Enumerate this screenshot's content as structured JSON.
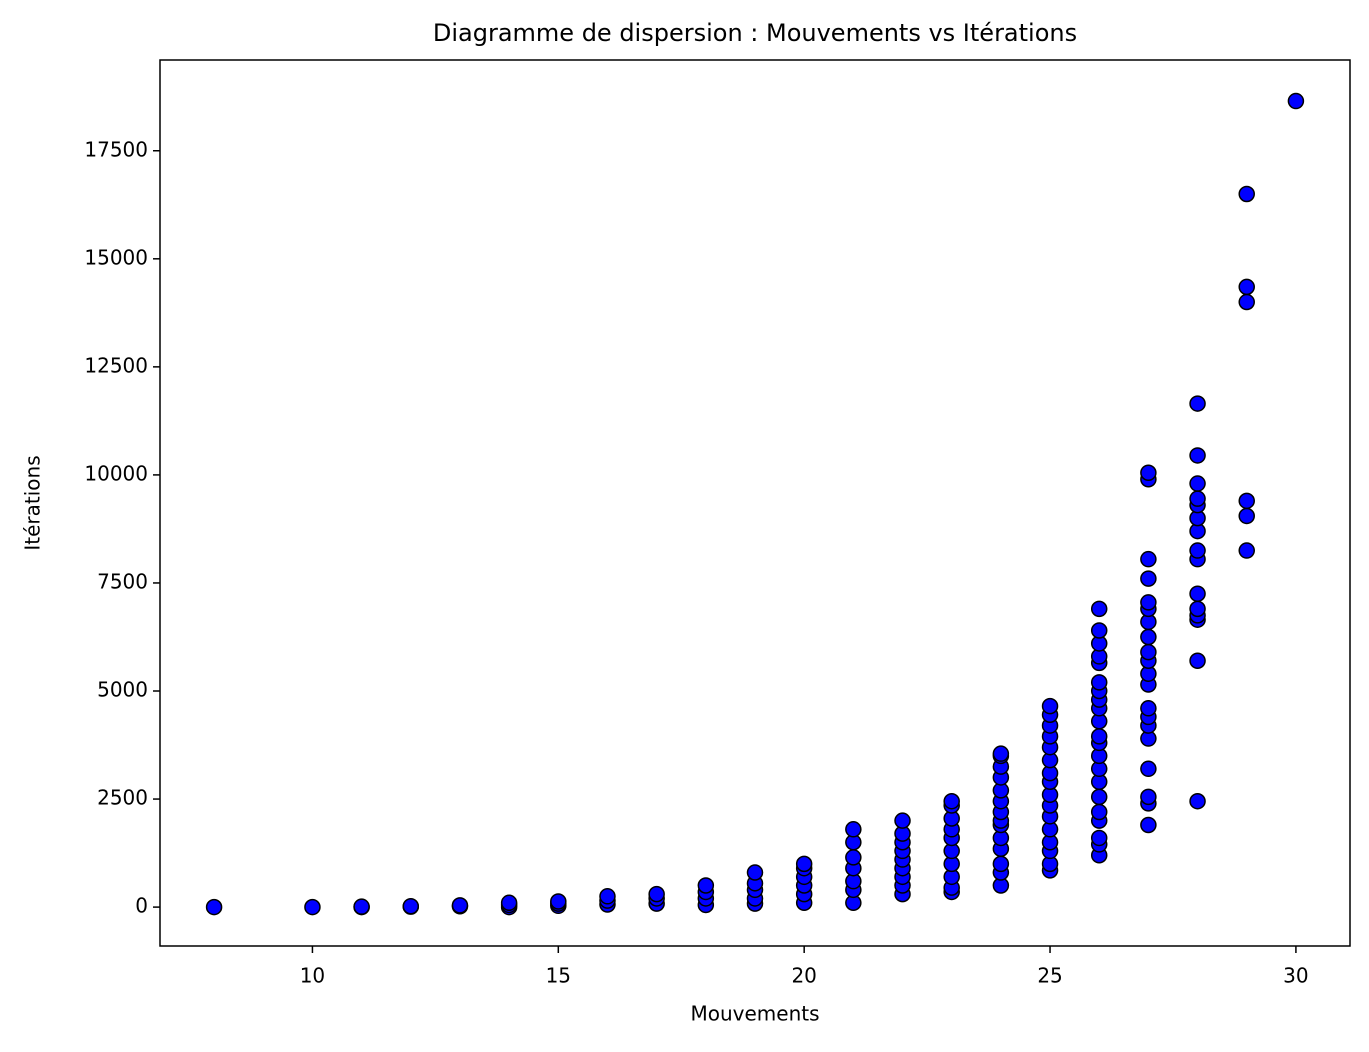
{
  "chart_data": {
    "type": "scatter",
    "title": "Diagramme de dispersion : Mouvements vs Itérations",
    "x_label": "Mouvements",
    "y_label": "Itérations",
    "xlim": [
      6.9,
      31.1
    ],
    "ylim": [
      -900,
      19600
    ],
    "xticks": [
      10,
      15,
      20,
      25,
      30
    ],
    "yticks": [
      0,
      2500,
      5000,
      7500,
      10000,
      12500,
      15000,
      17500
    ],
    "series": [
      {
        "color": "#0000ff",
        "x": [
          8,
          10,
          11,
          11,
          12,
          12,
          13,
          13,
          14,
          14,
          14,
          15,
          15,
          15,
          16,
          16,
          16,
          17,
          17,
          17,
          18,
          18,
          18,
          18,
          19,
          19,
          19,
          19,
          19,
          20,
          20,
          20,
          20,
          20,
          20,
          21,
          21,
          21,
          21,
          21,
          21,
          21,
          22,
          22,
          22,
          22,
          22,
          22,
          22,
          22,
          22,
          23,
          23,
          23,
          23,
          23,
          23,
          23,
          23,
          23,
          23,
          24,
          24,
          24,
          24,
          24,
          24,
          24,
          24,
          24,
          24,
          24,
          24,
          24,
          24,
          25,
          25,
          25,
          25,
          25,
          25,
          25,
          25,
          25,
          25,
          25,
          25,
          25,
          25,
          25,
          25,
          26,
          26,
          26,
          26,
          26,
          26,
          26,
          26,
          26,
          26,
          26,
          26,
          26,
          26,
          26,
          26,
          26,
          26,
          26,
          26,
          26,
          27,
          27,
          27,
          27,
          27,
          27,
          27,
          27,
          27,
          27,
          27,
          27,
          27,
          27,
          27,
          27,
          27,
          27,
          27,
          27,
          28,
          28,
          28,
          28,
          28,
          28,
          28,
          28,
          28,
          28,
          28,
          28,
          28,
          28,
          28,
          29,
          29,
          29,
          29,
          29,
          29,
          30
        ],
        "values": [
          0,
          0,
          0,
          10,
          10,
          20,
          20,
          40,
          0,
          50,
          100,
          30,
          80,
          130,
          60,
          150,
          250,
          80,
          200,
          300,
          50,
          200,
          350,
          500,
          80,
          200,
          400,
          550,
          800,
          100,
          300,
          500,
          700,
          900,
          1000,
          100,
          400,
          600,
          900,
          1150,
          1500,
          1800,
          300,
          500,
          700,
          900,
          1100,
          1300,
          1500,
          1700,
          2000,
          350,
          450,
          700,
          1000,
          1300,
          1600,
          1800,
          2050,
          2350,
          2450,
          500,
          800,
          1000,
          1350,
          1600,
          1900,
          2000,
          2200,
          2450,
          2700,
          3000,
          3250,
          3500,
          3550,
          850,
          1000,
          1300,
          1500,
          1800,
          2100,
          2350,
          2600,
          2900,
          3100,
          3400,
          3700,
          3950,
          4200,
          4450,
          4650,
          1200,
          1450,
          1600,
          2000,
          2200,
          2550,
          2900,
          3200,
          3500,
          3800,
          3950,
          4300,
          4600,
          4800,
          5000,
          5200,
          5650,
          5800,
          6100,
          6400,
          6900,
          1900,
          2400,
          2550,
          3200,
          3900,
          4200,
          4400,
          4600,
          5150,
          5400,
          5700,
          5900,
          6250,
          6600,
          6900,
          7050,
          7600,
          8050,
          9900,
          10050,
          2450,
          5700,
          6650,
          6750,
          6900,
          7250,
          8050,
          8250,
          8700,
          9000,
          9300,
          9450,
          9800,
          10450,
          11650,
          8250,
          9050,
          9400,
          14000,
          14350,
          16500,
          18650
        ]
      }
    ]
  }
}
